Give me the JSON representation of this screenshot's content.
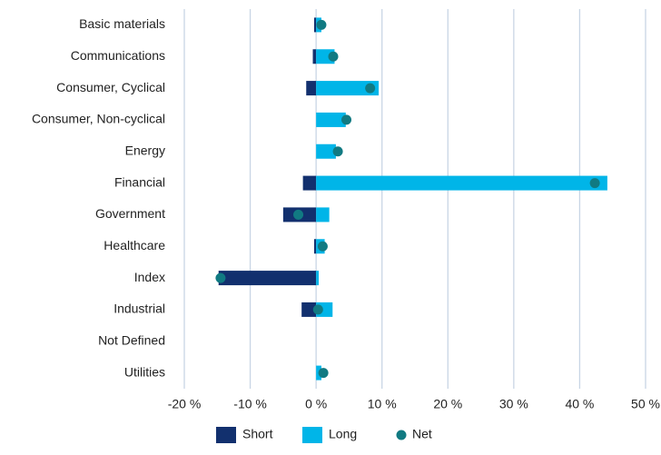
{
  "chart_data": {
    "type": "bar",
    "categories": [
      "Basic materials",
      "Communications",
      "Consumer, Cyclical",
      "Consumer, Non-cyclical",
      "Energy",
      "Financial",
      "Government",
      "Healthcare",
      "Index",
      "Industrial",
      "Not Defined",
      "Utilities"
    ],
    "series": [
      {
        "name": "Short",
        "color": "#12306e",
        "values": [
          -0.3,
          -0.5,
          -1.5,
          0,
          0,
          -2.0,
          -5.0,
          -0.3,
          -14.8,
          -2.2,
          null,
          0
        ]
      },
      {
        "name": "Long",
        "color": "#00b5e8",
        "values": [
          0.8,
          2.8,
          9.5,
          4.5,
          3.0,
          44.2,
          2.0,
          1.3,
          0.4,
          2.5,
          null,
          0.8
        ]
      },
      {
        "name": "Net",
        "color": "#117a82",
        "values": [
          0.8,
          2.6,
          8.2,
          4.6,
          3.3,
          42.3,
          -2.7,
          1.0,
          -14.5,
          0.3,
          null,
          1.1
        ]
      }
    ],
    "xlim": [
      -20,
      50
    ],
    "xticks": [
      {
        "value": -20,
        "label": "-20 %"
      },
      {
        "value": -10,
        "label": "-10 %"
      },
      {
        "value": 0,
        "label": "0 %"
      },
      {
        "value": 10,
        "label": "10 %"
      },
      {
        "value": 20,
        "label": "20 %"
      },
      {
        "value": 30,
        "label": "30 %"
      },
      {
        "value": 40,
        "label": "40 %"
      },
      {
        "value": 50,
        "label": "50 %"
      }
    ],
    "grid": true,
    "legend": "bottom"
  }
}
